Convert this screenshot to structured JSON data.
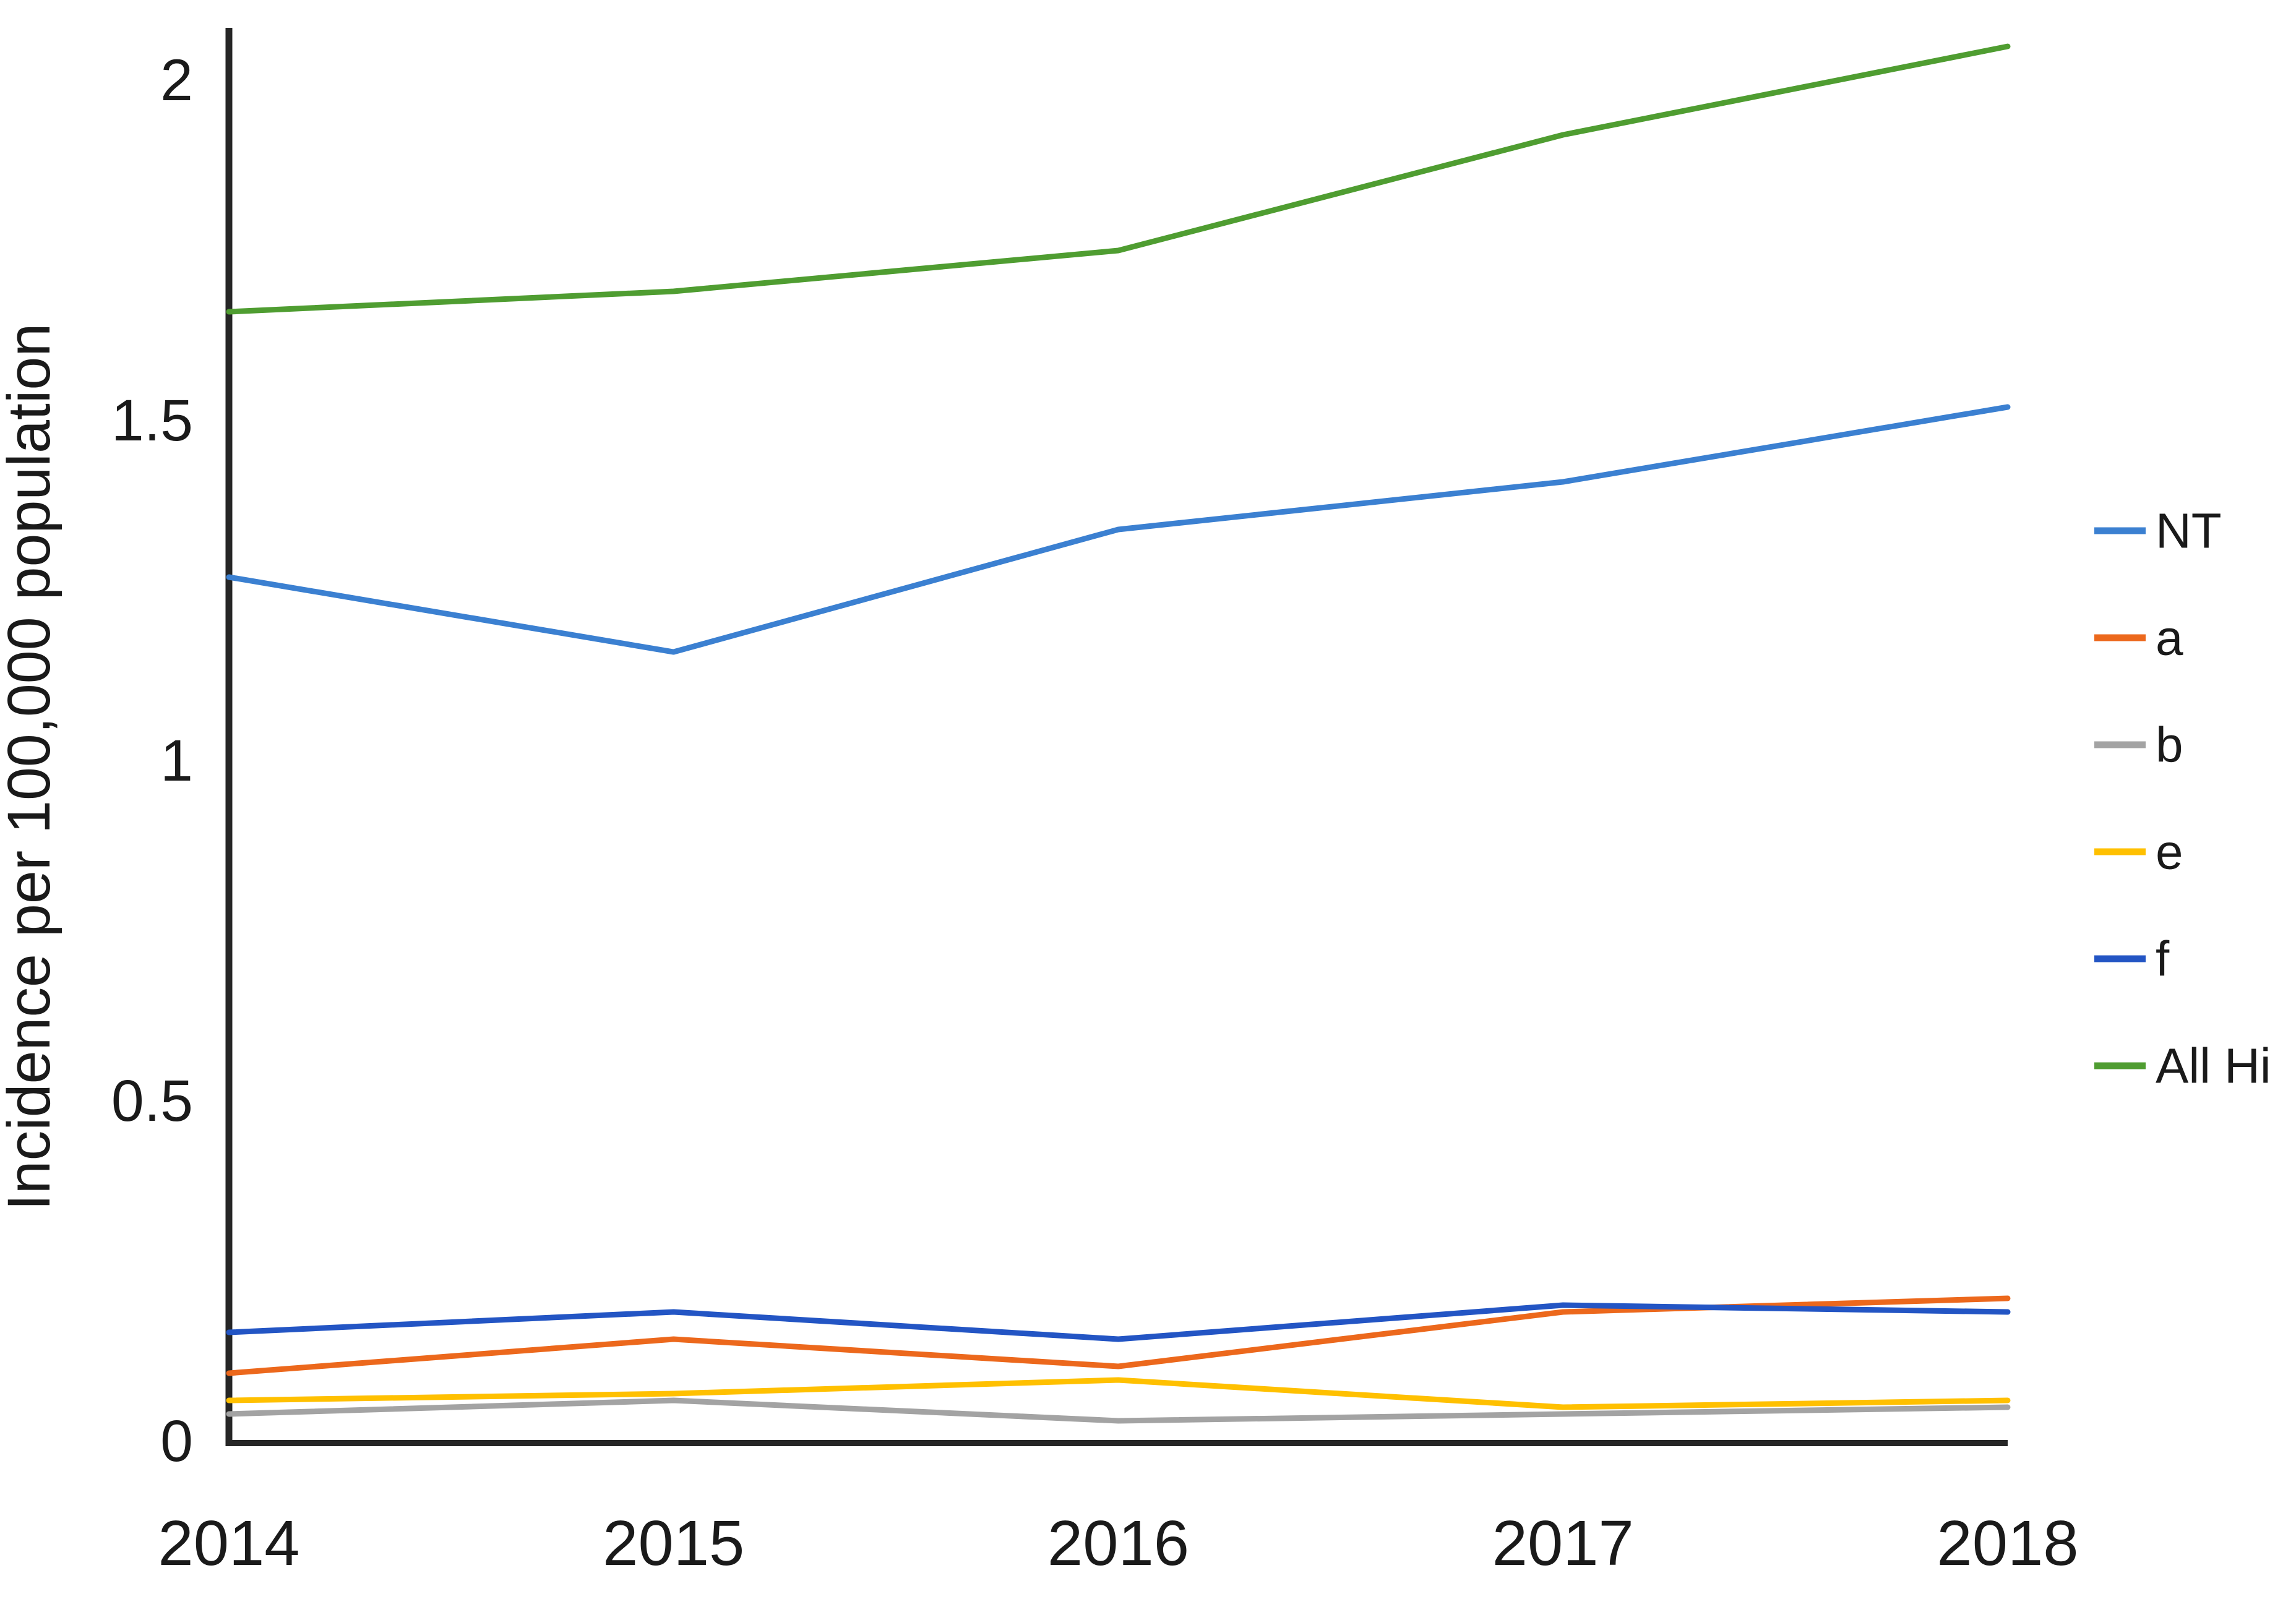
{
  "chart_data": {
    "type": "line",
    "title": "",
    "xlabel": "",
    "ylabel": "Incidence per 100,000 population",
    "x": [
      2014,
      2015,
      2016,
      2017,
      2018
    ],
    "x_labels": [
      "2014",
      "2015",
      "2016",
      "2017",
      "2018"
    ],
    "series": [
      {
        "name": "NT",
        "color": "#3B80D1",
        "values": [
          1.27,
          1.16,
          1.34,
          1.41,
          1.52
        ]
      },
      {
        "name": "a",
        "color": "#EC681C",
        "values": [
          0.1,
          0.15,
          0.11,
          0.19,
          0.21
        ]
      },
      {
        "name": "b",
        "color": "#A3A3A3",
        "values": [
          0.04,
          0.06,
          0.03,
          0.04,
          0.05
        ]
      },
      {
        "name": "e",
        "color": "#FFC000",
        "values": [
          0.06,
          0.07,
          0.09,
          0.05,
          0.06
        ]
      },
      {
        "name": "f",
        "color": "#2355C4",
        "values": [
          0.16,
          0.19,
          0.15,
          0.2,
          0.19
        ]
      },
      {
        "name": "All Hi",
        "color": "#4F9D31",
        "values": [
          1.66,
          1.69,
          1.75,
          1.92,
          2.05
        ]
      }
    ],
    "yticks": [
      0,
      0.5,
      1,
      1.5,
      2
    ],
    "ytick_labels": [
      "0",
      "0.5",
      "1",
      "1.5",
      "2"
    ],
    "ylim": [
      0,
      2.08
    ],
    "grid": false,
    "legend_position": "right",
    "axis_color": "#262626"
  }
}
